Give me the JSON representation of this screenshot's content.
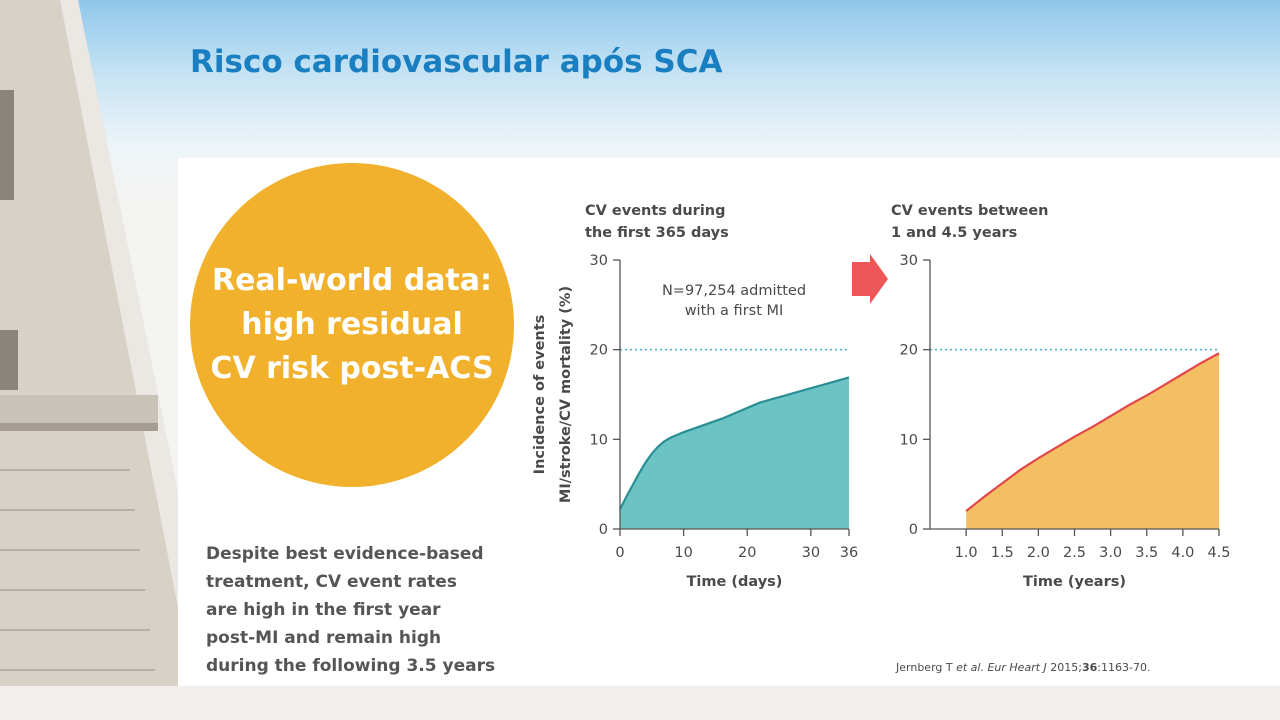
{
  "slide": {
    "title": "Risco cardiovascular após SCA"
  },
  "callout": {
    "lines": [
      "Real-world data:",
      "high residual",
      "CV risk post-ACS"
    ]
  },
  "body_lines": [
    "Despite best evidence-based",
    "treatment, CV event rates",
    "are high in the first year",
    "post-MI and remain high",
    "during the following 3.5 years"
  ],
  "citation": {
    "authors": "Jernberg T ",
    "etal": "et al.",
    "journal": "Eur Heart J",
    "year": " 2015;",
    "volume": "36",
    "pages": ":1163-70."
  },
  "colors": {
    "title": "#1a7fc1",
    "circle": "#f1b12c",
    "teal_fill": "#6cc3c4",
    "teal_line": "#2a8f95",
    "orange_fill": "#f4bf63",
    "red_line": "#e2484a",
    "reference_line": "#3ab4c6",
    "arrow": "#ec5656"
  },
  "chart_data": [
    {
      "type": "area",
      "title_lines": [
        "CV events during",
        "the first 365 days"
      ],
      "xlabel": "Time (days)",
      "ylabel_lines": [
        "Incidence of events",
        "MI/stroke/CV mortality (%)"
      ],
      "annotation_lines": [
        "N=97,254 admitted",
        "with a first MI"
      ],
      "xlim": [
        0,
        36
      ],
      "ylim": [
        0,
        30
      ],
      "xticks": [
        0,
        10,
        20,
        30,
        36
      ],
      "yticks": [
        0,
        10,
        20,
        30
      ],
      "reference_y": 20,
      "series": [
        {
          "x": [
            0,
            1,
            2,
            3,
            4,
            5,
            6,
            7,
            8,
            10,
            12,
            14,
            16,
            18,
            20,
            22,
            24,
            26,
            28,
            30,
            32,
            34,
            36
          ],
          "y": [
            2.2,
            3.6,
            4.9,
            6.2,
            7.4,
            8.4,
            9.2,
            9.8,
            10.2,
            10.8,
            11.3,
            11.8,
            12.3,
            12.9,
            13.5,
            14.1,
            14.5,
            14.9,
            15.3,
            15.7,
            16.1,
            16.5,
            16.9
          ]
        }
      ]
    },
    {
      "type": "area",
      "title_lines": [
        "CV events between",
        "1 and 4.5 years"
      ],
      "xlabel": "Time (years)",
      "xlim": [
        0.5,
        4.5
      ],
      "ylim": [
        0,
        30
      ],
      "xticks": [
        1.0,
        1.5,
        2.0,
        2.5,
        3.0,
        3.5,
        4.0,
        4.5
      ],
      "xtick_labels": [
        "1.0",
        "1.5",
        "2.0",
        "2.5",
        "3.0",
        "3.5",
        "4.0",
        "4.5"
      ],
      "yticks": [
        0,
        10,
        20,
        30
      ],
      "reference_y": 20,
      "series": [
        {
          "x": [
            1.0,
            1.25,
            1.5,
            1.75,
            2.0,
            2.25,
            2.5,
            2.75,
            3.0,
            3.25,
            3.5,
            3.75,
            4.0,
            4.25,
            4.5
          ],
          "y": [
            2.0,
            3.6,
            5.1,
            6.6,
            7.9,
            9.1,
            10.3,
            11.4,
            12.6,
            13.8,
            14.9,
            16.1,
            17.3,
            18.5,
            19.6
          ]
        }
      ]
    }
  ]
}
